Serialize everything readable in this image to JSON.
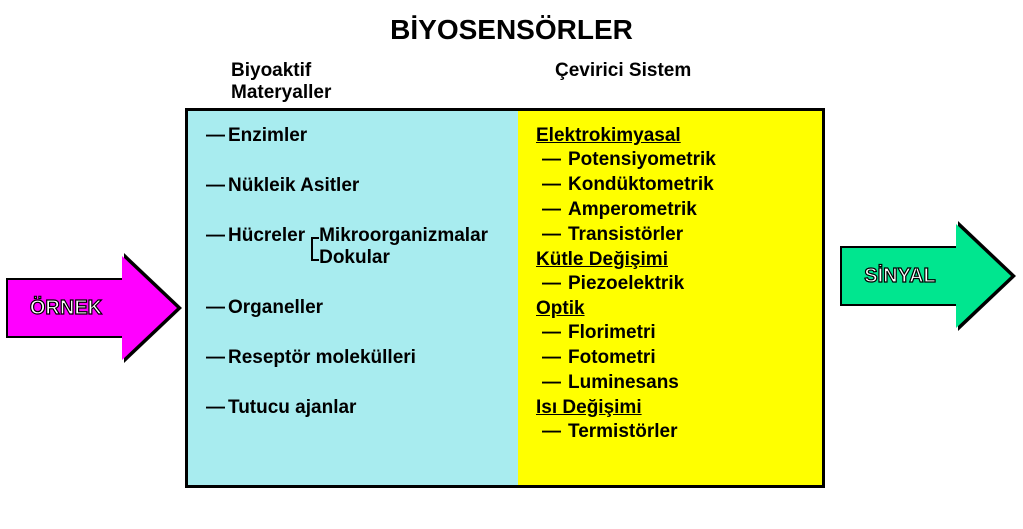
{
  "title": {
    "text": "BİYOSENSÖRLER",
    "fontsize": 28
  },
  "headers": {
    "left_line1": "Biyoaktif",
    "left_line2": "Materyaller",
    "right": "Çevirici Sistem",
    "fontsize": 19
  },
  "diagram": {
    "box_border_color": "#000000",
    "left_column": {
      "bg_color": "#a8ecef",
      "fontsize": 19,
      "dash": "—",
      "items": [
        {
          "label": "Enzimler"
        },
        {
          "label": "Nükleik Asitler"
        },
        {
          "label": "Hücreler",
          "nested": [
            "Mikroorganizmalar",
            "Dokular"
          ]
        },
        {
          "label": "Organeller"
        },
        {
          "label": "Reseptör molekülleri"
        },
        {
          "label": "Tutucu ajanlar"
        }
      ]
    },
    "right_column": {
      "bg_color": "#ffff00",
      "fontsize": 19,
      "dash": "—",
      "groups": [
        {
          "head": "Elektrokimyasal",
          "items": [
            "Potensiyometrik",
            "Kondüktometrik",
            "Amperometrik",
            "Transistörler"
          ]
        },
        {
          "head": "Kütle Değişimi",
          "items": [
            "Piezoelektrik"
          ]
        },
        {
          "head": "Optik",
          "items": [
            "Florimetri",
            "Fotometri",
            "Luminesans"
          ]
        },
        {
          "head": "Isı Değişimi",
          "items": [
            "Termistörler"
          ]
        }
      ]
    }
  },
  "arrows": {
    "left": {
      "label": "ÖRNEK",
      "fill_color": "#ff00ff",
      "outline_color": "#000000",
      "text_stroke": "#000000",
      "text_fill": "#ffffff",
      "fontsize": 20
    },
    "right": {
      "label": "SİNYAL",
      "fill_color": "#00e68f",
      "outline_color": "#000000",
      "text_stroke": "#000000",
      "text_fill": "#ffffff",
      "fontsize": 20
    }
  }
}
